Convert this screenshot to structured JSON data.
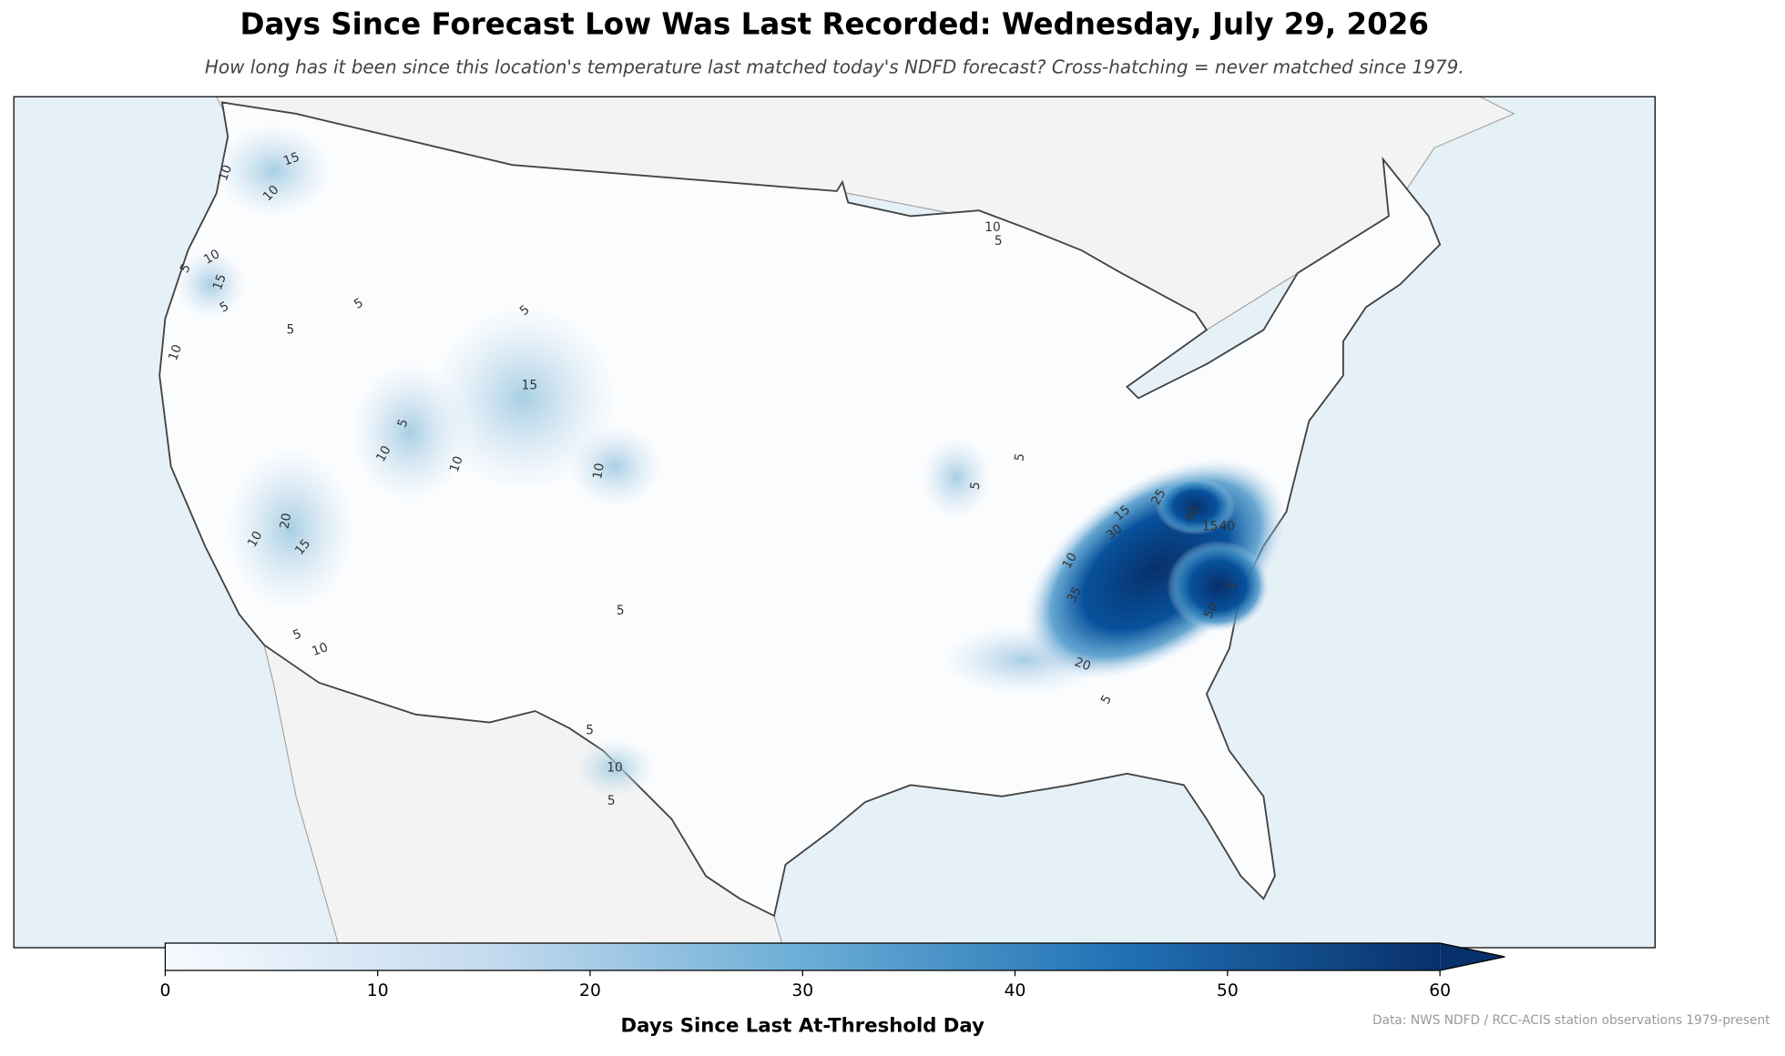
{
  "header": {
    "title": "Days Since Forecast Low Was Last Recorded: Wednesday, July 29, 2026",
    "subtitle": "How long has it been since this location's temperature last matched today's NDFD forecast? Cross-hatching = never matched since 1979."
  },
  "map": {
    "contour_labels": [
      "15",
      "10",
      "10",
      "10",
      "5",
      "15",
      "5",
      "5",
      "5",
      "10",
      "5",
      "15",
      "5",
      "10",
      "10",
      "10",
      "20",
      "10",
      "15",
      "5",
      "10",
      "10",
      "5",
      "5",
      "5",
      "15",
      "25",
      "30",
      "10",
      "35",
      "15",
      "40",
      "40",
      "5",
      "50",
      "20",
      "5",
      "5",
      "5",
      "10",
      "5"
    ]
  },
  "colorbar": {
    "label": "Days Since Last At-Threshold Day",
    "lim": [
      0,
      60
    ],
    "ticks": [
      0,
      10,
      20,
      30,
      40,
      50,
      60
    ],
    "extend": "max"
  },
  "footer": {
    "source": "Data: NWS NDFD / RCC-ACIS station observations 1979-present"
  }
}
